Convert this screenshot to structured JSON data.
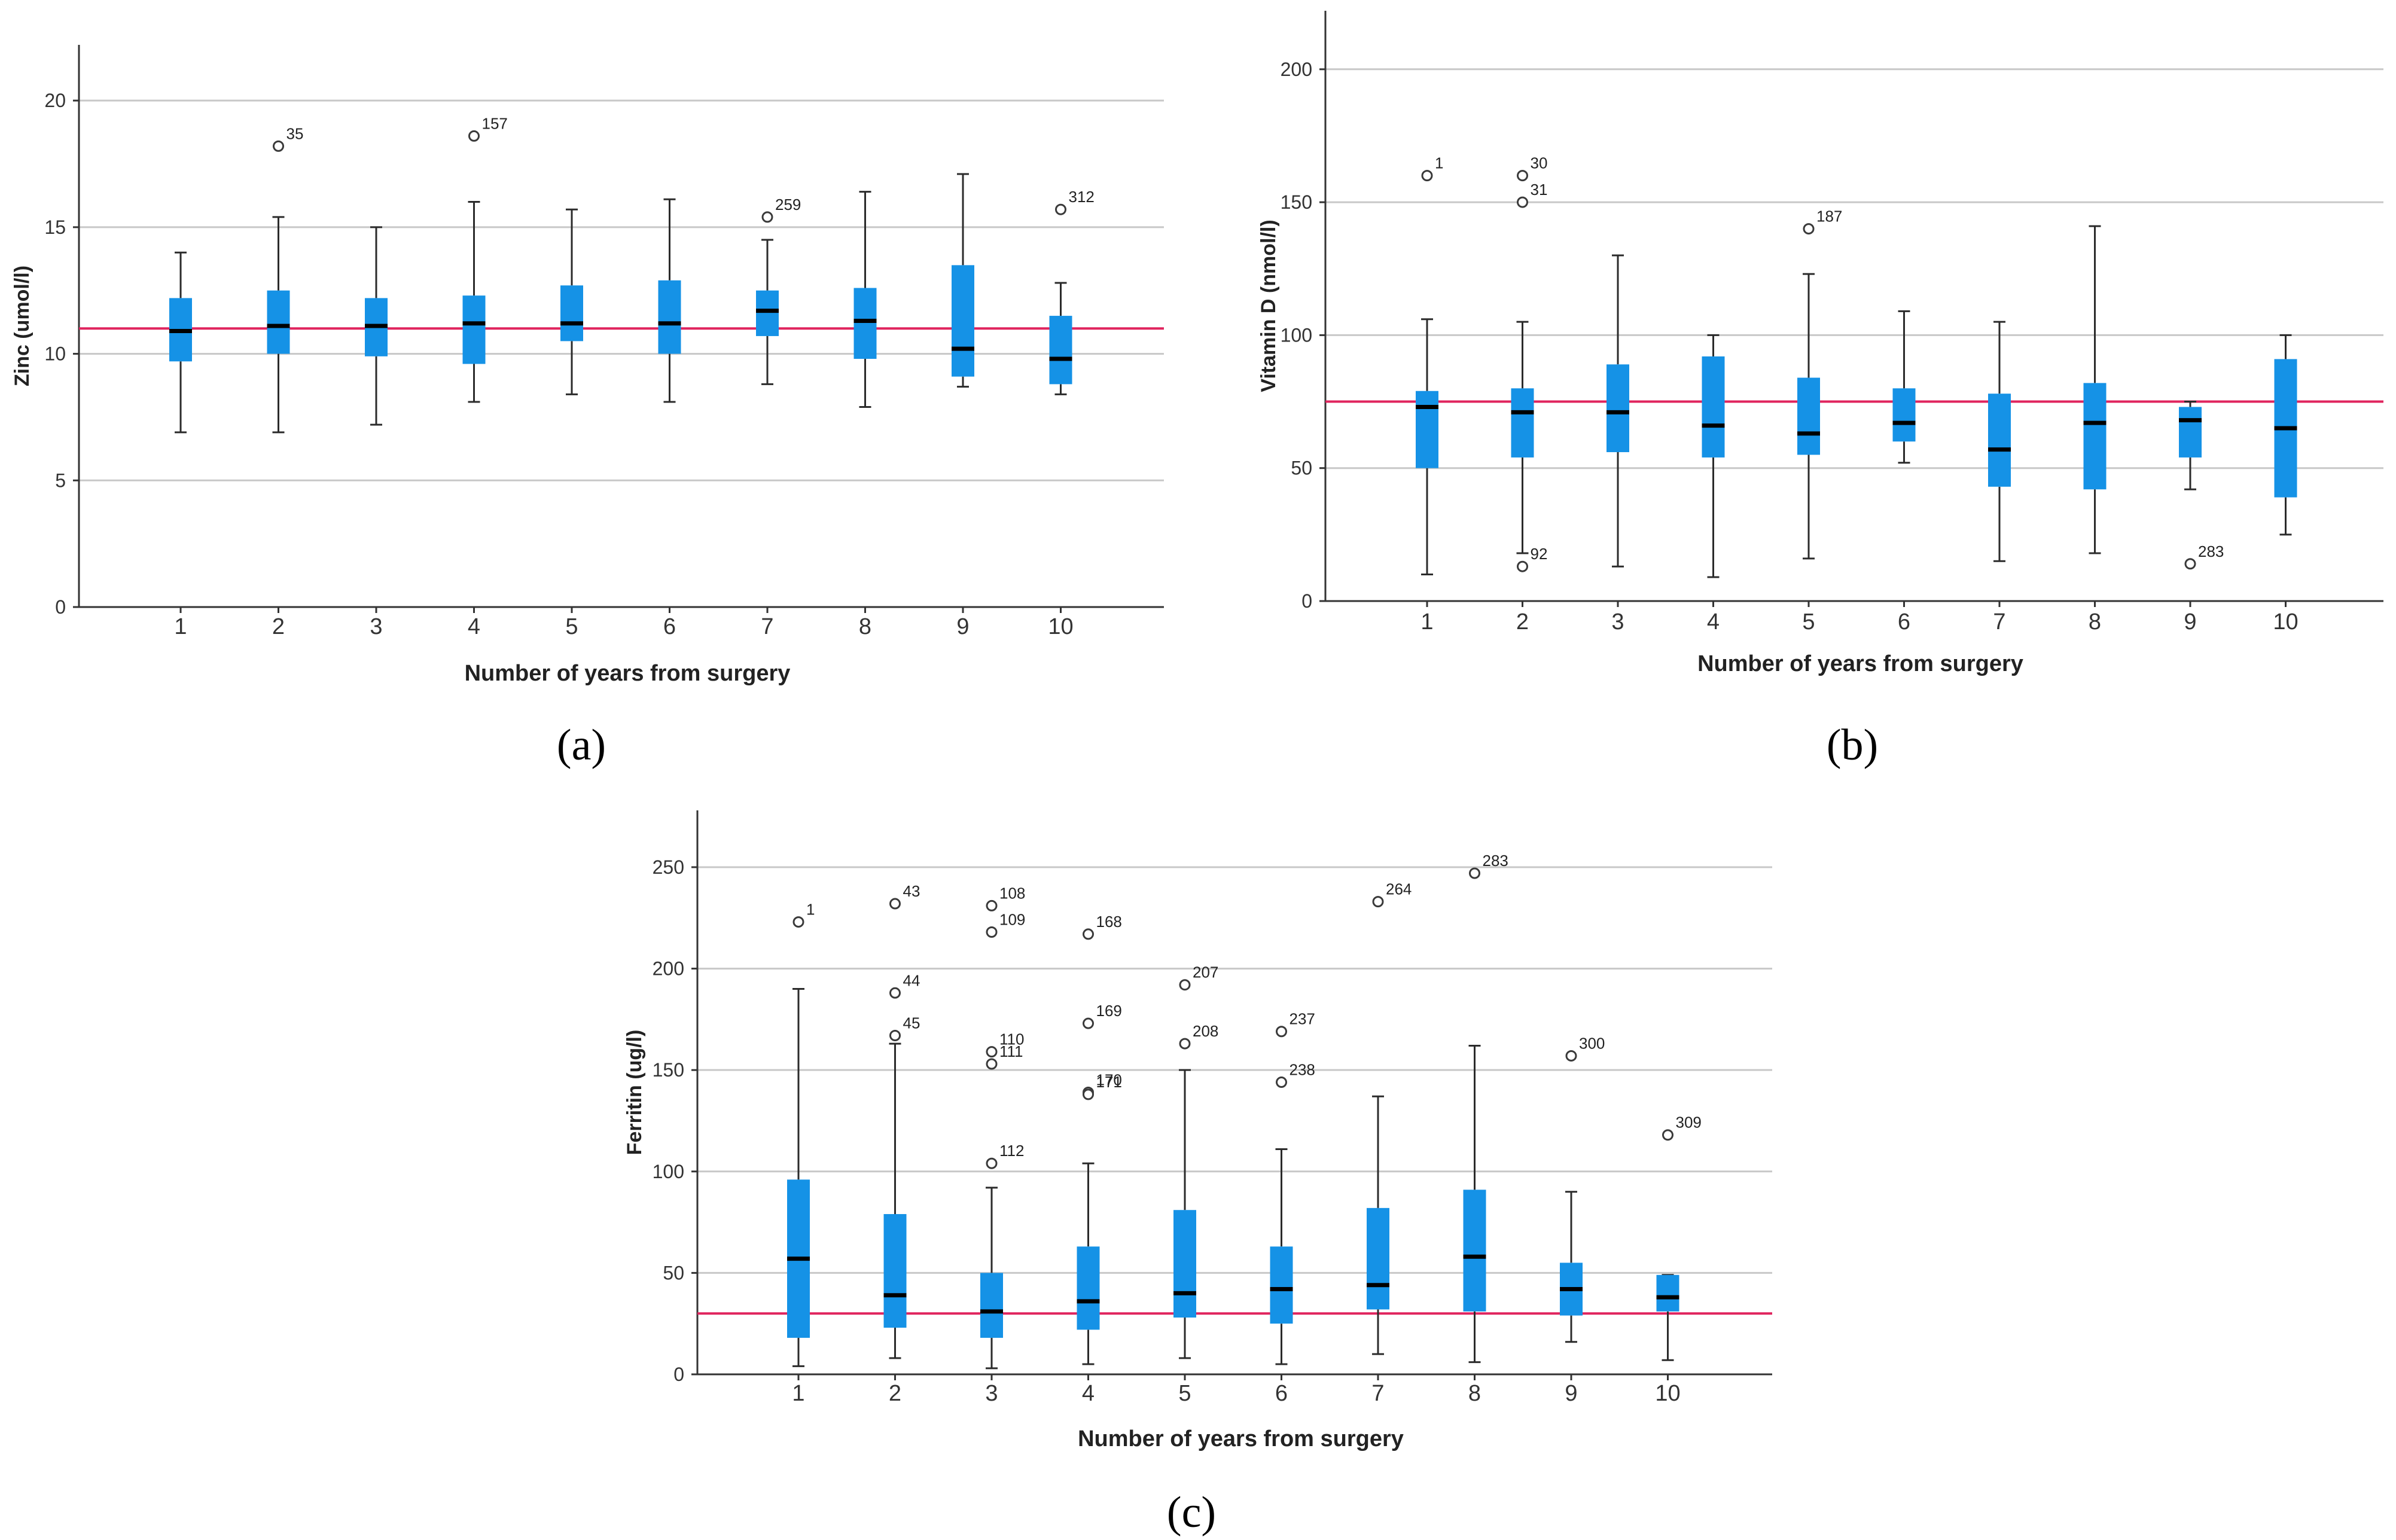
{
  "colors": {
    "box": "#1592e6",
    "reference_line": "#e0245e",
    "grid": "#c8c8c8"
  },
  "chart_data": [
    {
      "panel": "(a)",
      "type": "boxplot",
      "xlabel": "Number of years from surgery",
      "ylabel": "Zinc (umol/l)",
      "categories": [
        "1",
        "2",
        "3",
        "4",
        "5",
        "6",
        "7",
        "8",
        "9",
        "10"
      ],
      "yticks": [
        0,
        5,
        10,
        15,
        20
      ],
      "ylim": [
        0,
        22.2
      ],
      "reference_line": 11,
      "boxes": [
        {
          "min": 6.9,
          "q1": 9.7,
          "median": 10.9,
          "q3": 12.2,
          "max": 14.0
        },
        {
          "min": 6.9,
          "q1": 10.0,
          "median": 11.1,
          "q3": 12.5,
          "max": 15.4
        },
        {
          "min": 7.2,
          "q1": 9.9,
          "median": 11.1,
          "q3": 12.2,
          "max": 15.0
        },
        {
          "min": 8.1,
          "q1": 9.6,
          "median": 11.2,
          "q3": 12.3,
          "max": 16.0
        },
        {
          "min": 8.4,
          "q1": 10.5,
          "median": 11.2,
          "q3": 12.7,
          "max": 15.7
        },
        {
          "min": 8.1,
          "q1": 10.0,
          "median": 11.2,
          "q3": 12.9,
          "max": 16.1
        },
        {
          "min": 8.8,
          "q1": 10.7,
          "median": 11.7,
          "q3": 12.5,
          "max": 14.5
        },
        {
          "min": 7.9,
          "q1": 9.8,
          "median": 11.3,
          "q3": 12.6,
          "max": 16.4
        },
        {
          "min": 8.7,
          "q1": 9.1,
          "median": 10.2,
          "q3": 13.5,
          "max": 17.1
        },
        {
          "min": 8.4,
          "q1": 8.8,
          "median": 9.8,
          "q3": 11.5,
          "max": 12.8
        }
      ],
      "outliers": [
        {
          "category": "2",
          "value": 18.2,
          "label": "35"
        },
        {
          "category": "4",
          "value": 18.6,
          "label": "157"
        },
        {
          "category": "7",
          "value": 15.4,
          "label": "259"
        },
        {
          "category": "10",
          "value": 15.7,
          "label": "312"
        }
      ]
    },
    {
      "panel": "(b)",
      "type": "boxplot",
      "xlabel": "Number of years from surgery",
      "ylabel": "Vitamin D (nmol/l)",
      "categories": [
        "1",
        "2",
        "3",
        "4",
        "5",
        "6",
        "7",
        "8",
        "9",
        "10"
      ],
      "yticks": [
        0,
        50,
        100,
        150,
        200
      ],
      "ylim": [
        0,
        222
      ],
      "reference_line": 75,
      "boxes": [
        {
          "min": 10,
          "q1": 50,
          "median": 73,
          "q3": 79,
          "max": 106
        },
        {
          "min": 18,
          "q1": 54,
          "median": 71,
          "q3": 80,
          "max": 105
        },
        {
          "min": 13,
          "q1": 56,
          "median": 71,
          "q3": 89,
          "max": 130
        },
        {
          "min": 9,
          "q1": 54,
          "median": 66,
          "q3": 92,
          "max": 100
        },
        {
          "min": 16,
          "q1": 55,
          "median": 63,
          "q3": 84,
          "max": 123
        },
        {
          "min": 52,
          "q1": 60,
          "median": 67,
          "q3": 80,
          "max": 109
        },
        {
          "min": 15,
          "q1": 43,
          "median": 57,
          "q3": 78,
          "max": 105
        },
        {
          "min": 18,
          "q1": 42,
          "median": 67,
          "q3": 82,
          "max": 141
        },
        {
          "min": 42,
          "q1": 54,
          "median": 68,
          "q3": 73,
          "max": 75
        },
        {
          "min": 25,
          "q1": 39,
          "median": 65,
          "q3": 91,
          "max": 100
        }
      ],
      "outliers": [
        {
          "category": "1",
          "value": 160,
          "label": "1"
        },
        {
          "category": "2",
          "value": 160,
          "label": "30"
        },
        {
          "category": "2",
          "value": 150,
          "label": "31"
        },
        {
          "category": "2",
          "value": 13,
          "label": "92"
        },
        {
          "category": "5",
          "value": 140,
          "label": "187"
        },
        {
          "category": "9",
          "value": 14,
          "label": "283"
        }
      ]
    },
    {
      "panel": "(c)",
      "type": "boxplot",
      "xlabel": "Number of years from surgery",
      "ylabel": "Ferritin (ug/l)",
      "categories": [
        "1",
        "2",
        "3",
        "4",
        "5",
        "6",
        "7",
        "8",
        "9",
        "10"
      ],
      "yticks": [
        0,
        50,
        100,
        150,
        200,
        250
      ],
      "ylim": [
        0,
        278
      ],
      "reference_line": 30,
      "boxes": [
        {
          "min": 4,
          "q1": 18,
          "median": 57,
          "q3": 96,
          "max": 190
        },
        {
          "min": 8,
          "q1": 23,
          "median": 39,
          "q3": 79,
          "max": 163
        },
        {
          "min": 3,
          "q1": 18,
          "median": 31,
          "q3": 50,
          "max": 92
        },
        {
          "min": 5,
          "q1": 22,
          "median": 36,
          "q3": 63,
          "max": 104
        },
        {
          "min": 8,
          "q1": 28,
          "median": 40,
          "q3": 81,
          "max": 150
        },
        {
          "min": 5,
          "q1": 25,
          "median": 42,
          "q3": 63,
          "max": 111
        },
        {
          "min": 10,
          "q1": 32,
          "median": 44,
          "q3": 82,
          "max": 137
        },
        {
          "min": 6,
          "q1": 31,
          "median": 58,
          "q3": 91,
          "max": 162
        },
        {
          "min": 16,
          "q1": 29,
          "median": 42,
          "q3": 55,
          "max": 90
        },
        {
          "min": 7,
          "q1": 31,
          "median": 38,
          "q3": 49,
          "max": 49
        }
      ],
      "outliers": [
        {
          "category": "1",
          "value": 223,
          "label": "1"
        },
        {
          "category": "2",
          "value": 232,
          "label": "43"
        },
        {
          "category": "2",
          "value": 188,
          "label": "44"
        },
        {
          "category": "2",
          "value": 167,
          "label": "45"
        },
        {
          "category": "3",
          "value": 231,
          "label": "108"
        },
        {
          "category": "3",
          "value": 218,
          "label": "109"
        },
        {
          "category": "3",
          "value": 159,
          "label": "110"
        },
        {
          "category": "3",
          "value": 153,
          "label": "111"
        },
        {
          "category": "3",
          "value": 104,
          "label": "112"
        },
        {
          "category": "4",
          "value": 217,
          "label": "168"
        },
        {
          "category": "4",
          "value": 173,
          "label": "169"
        },
        {
          "category": "4",
          "value": 139,
          "label": "170"
        },
        {
          "category": "4",
          "value": 138,
          "label": "171"
        },
        {
          "category": "5",
          "value": 192,
          "label": "207"
        },
        {
          "category": "5",
          "value": 163,
          "label": "208"
        },
        {
          "category": "6",
          "value": 169,
          "label": "237"
        },
        {
          "category": "6",
          "value": 144,
          "label": "238"
        },
        {
          "category": "7",
          "value": 233,
          "label": "264"
        },
        {
          "category": "8",
          "value": 247,
          "label": "283"
        },
        {
          "category": "9",
          "value": 157,
          "label": "300"
        },
        {
          "category": "10",
          "value": 118,
          "label": "309"
        }
      ]
    }
  ]
}
